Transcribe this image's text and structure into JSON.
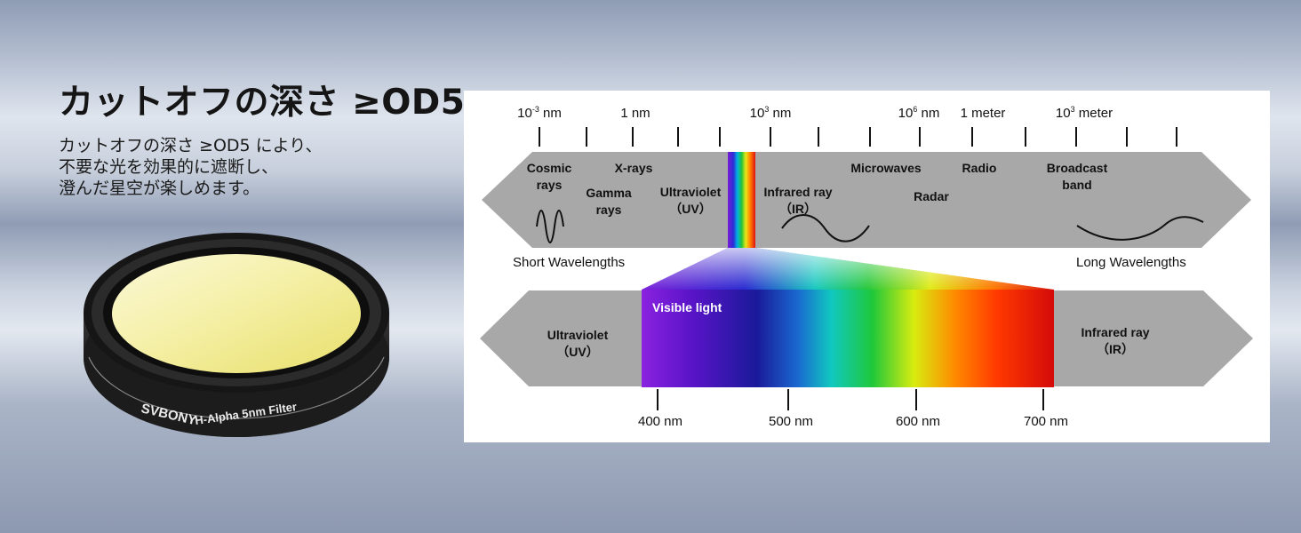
{
  "heading": {
    "title": "カットオフの深さ ≥OD5",
    "description": [
      "カットオフの深さ ≥OD5 により、",
      "不要な光を効果的に遮断し、",
      "澄んだ星空が楽しめます。"
    ]
  },
  "product": {
    "brand": "SVBONY",
    "model": "H-Alpha 5nm Filter"
  },
  "spectrum": {
    "scale_labels": [
      {
        "base": "10",
        "exp": "-3",
        "unit": "nm"
      },
      {
        "base": "1",
        "exp": "",
        "unit": "nm"
      },
      {
        "base": "10",
        "exp": "3",
        "unit": "nm"
      },
      {
        "base": "10",
        "exp": "6",
        "unit": "nm"
      },
      {
        "base": "1",
        "exp": "",
        "unit": "meter"
      },
      {
        "base": "10",
        "exp": "3",
        "unit": "meter"
      }
    ],
    "bands": [
      {
        "id": "cosmic",
        "lines": [
          "Cosmic",
          "rays"
        ]
      },
      {
        "id": "gamma",
        "lines": [
          "Gamma",
          "rays"
        ]
      },
      {
        "id": "xrays",
        "lines": [
          "X-rays"
        ]
      },
      {
        "id": "uv",
        "lines": [
          "Ultraviolet",
          "（UV）"
        ]
      },
      {
        "id": "ir",
        "lines": [
          "Infrared ray",
          "（IR）"
        ]
      },
      {
        "id": "microwaves",
        "lines": [
          "Microwaves"
        ]
      },
      {
        "id": "radar",
        "lines": [
          "Radar"
        ]
      },
      {
        "id": "radio",
        "lines": [
          "Radio"
        ]
      },
      {
        "id": "broadcast",
        "lines": [
          "Broadcast",
          "band"
        ]
      }
    ],
    "short_label": "Short Wavelengths",
    "long_label": "Long Wavelengths",
    "visible": {
      "label": "Visible light",
      "uv_lines": [
        "Ultraviolet",
        "（UV）"
      ],
      "ir_lines": [
        "Infrared ray",
        "（IR）"
      ],
      "ticks": [
        "400 nm",
        "500 nm",
        "600 nm",
        "700 nm"
      ]
    }
  },
  "colors": {
    "band_gray": "#a8a8a8",
    "filter_glass": "#f3ee9c",
    "filter_ring": "#1a1a1a"
  }
}
